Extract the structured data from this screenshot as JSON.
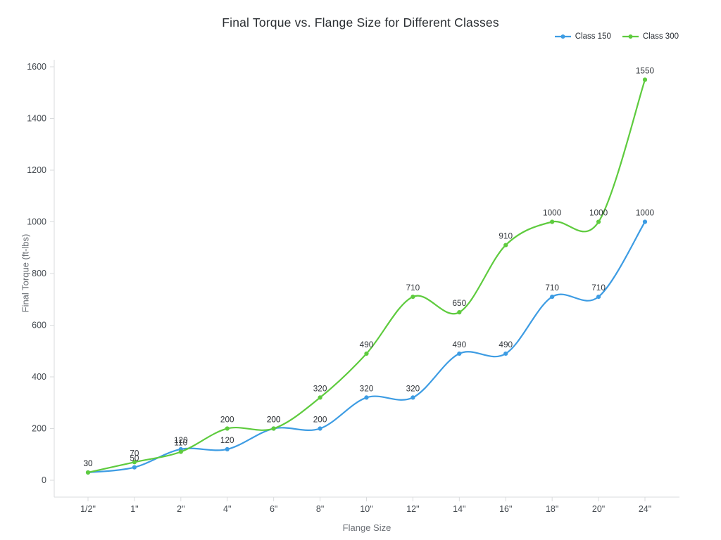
{
  "chart_data": {
    "type": "line",
    "title": "Final Torque vs. Flange Size for Different Classes",
    "xlabel": "Flange Size",
    "ylabel": "Final Torque (ft-lbs)",
    "categories": [
      "1/2\"",
      "1\"",
      "2\"",
      "4\"",
      "6\"",
      "8\"",
      "10\"",
      "12\"",
      "14\"",
      "16\"",
      "18\"",
      "20\"",
      "24\""
    ],
    "series": [
      {
        "name": "Class 150",
        "color": "#3d9ce3",
        "values": [
          30,
          50,
          120,
          120,
          200,
          200,
          320,
          320,
          490,
          490,
          710,
          710,
          1000
        ]
      },
      {
        "name": "Class 300",
        "color": "#5ecb3e",
        "values": [
          30,
          70,
          110,
          200,
          200,
          320,
          490,
          710,
          650,
          910,
          1000,
          1000,
          1550
        ]
      }
    ],
    "y_ticks": [
      0,
      200,
      400,
      600,
      800,
      1000,
      1200,
      1400,
      1600
    ],
    "ylim": [
      0,
      1600
    ],
    "grid": false,
    "legend_position": "top-right",
    "line_shape": "spline",
    "data_labels": true
  },
  "style": {
    "tick_label_color": "#444a50",
    "data_label_color": "#33373c",
    "axis_line_color": "#d9dbdd"
  }
}
